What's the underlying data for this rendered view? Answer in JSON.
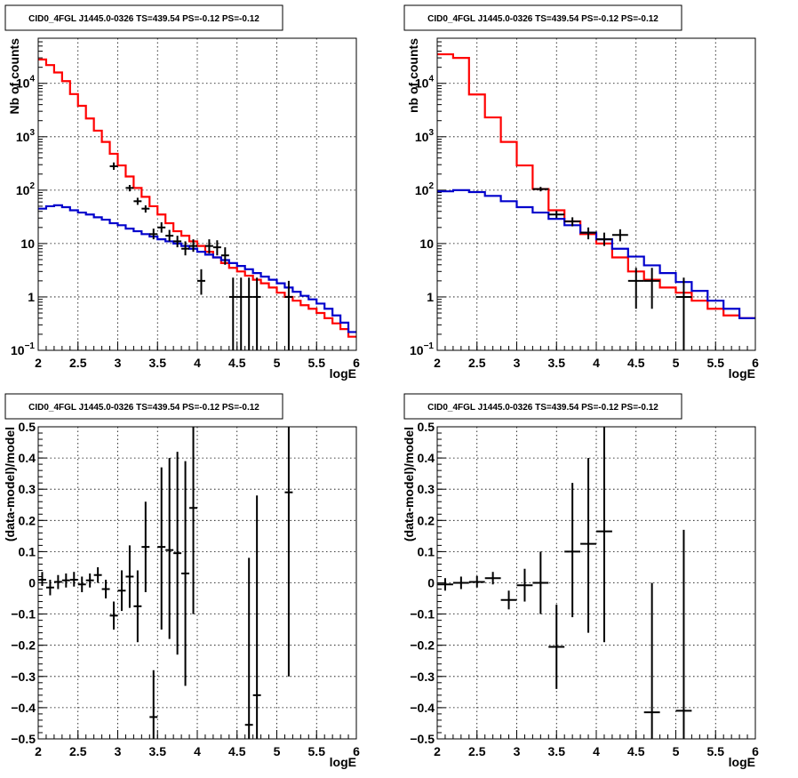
{
  "chart_data": [
    {
      "type": "line",
      "title": "CID0_4FGL J1445.0-0326 TS=439.54 PS=-0.12 PS=-0.12",
      "xlabel": "logE",
      "ylabel": "Nb of counts",
      "xlim": [
        2,
        6
      ],
      "ylim": [
        0.1,
        70000
      ],
      "yscale": "log",
      "grid": true,
      "x_ticks": [
        "2",
        "2.5",
        "3",
        "3.5",
        "4",
        "4.5",
        "5",
        "5.5",
        "6"
      ],
      "y_ticks": [
        {
          "value": 0.1,
          "base": "10",
          "exp": "−1"
        },
        {
          "value": 1,
          "label": "1"
        },
        {
          "value": 10,
          "label": "10"
        },
        {
          "value": 100,
          "base": "10",
          "exp": "2"
        },
        {
          "value": 1000,
          "base": "10",
          "exp": "3"
        },
        {
          "value": 10000,
          "base": "10",
          "exp": "4"
        }
      ],
      "series": [
        {
          "color": "#ff0000",
          "bins": 40,
          "x0": 2,
          "dx": 0.1,
          "values": [
            28000,
            22000,
            16000,
            11000,
            6300,
            3800,
            2200,
            1300,
            800,
            480,
            290,
            180,
            110,
            75,
            50,
            35,
            24,
            17,
            14,
            11,
            9,
            7,
            5.5,
            4.3,
            3.5,
            3,
            2.5,
            2.1,
            1.8,
            1.5,
            1.2,
            1,
            0.85,
            0.7,
            0.6,
            0.5,
            0.4,
            0.32,
            0.25,
            0.18
          ]
        },
        {
          "color": "#0000cc",
          "bins": 40,
          "x0": 2,
          "dx": 0.1,
          "values": [
            45,
            50,
            52,
            48,
            42,
            38,
            35,
            31,
            28,
            24,
            22,
            19,
            17,
            15,
            13.5,
            12,
            11,
            10,
            9,
            8,
            7,
            6.2,
            5.5,
            4.9,
            4.3,
            3.8,
            3.3,
            2.8,
            2.4,
            2.1,
            1.8,
            1.5,
            1.25,
            1.05,
            0.9,
            0.75,
            0.6,
            0.45,
            0.33,
            0.22
          ]
        }
      ],
      "points": [
        {
          "x": 2.95,
          "y": 280,
          "lo": 240,
          "hi": 330
        },
        {
          "x": 3.15,
          "y": 110,
          "lo": 95,
          "hi": 125
        },
        {
          "x": 3.25,
          "y": 62,
          "lo": 53,
          "hi": 72
        },
        {
          "x": 3.35,
          "y": 45,
          "lo": 38,
          "hi": 52
        },
        {
          "x": 3.45,
          "y": 15,
          "lo": 12,
          "hi": 19
        },
        {
          "x": 3.55,
          "y": 20,
          "lo": 16,
          "hi": 25
        },
        {
          "x": 3.65,
          "y": 14,
          "lo": 11,
          "hi": 18
        },
        {
          "x": 3.75,
          "y": 11,
          "lo": 8.5,
          "hi": 14
        },
        {
          "x": 3.85,
          "y": 8,
          "lo": 6,
          "hi": 11
        },
        {
          "x": 3.95,
          "y": 9,
          "lo": 7,
          "hi": 12
        },
        {
          "x": 4.05,
          "y": 2,
          "lo": 1.1,
          "hi": 3.3
        },
        {
          "x": 4.15,
          "y": 9,
          "lo": 6.5,
          "hi": 12
        },
        {
          "x": 4.25,
          "y": 8.5,
          "lo": 6,
          "hi": 11.5
        },
        {
          "x": 4.35,
          "y": 6,
          "lo": 4,
          "hi": 8.5
        },
        {
          "x": 4.45,
          "y": 1,
          "lo": 0.1,
          "hi": 2.3
        },
        {
          "x": 4.55,
          "y": 1,
          "lo": 0.1,
          "hi": 2.3
        },
        {
          "x": 4.65,
          "y": 1,
          "lo": 0.1,
          "hi": 2.3
        },
        {
          "x": 4.75,
          "y": 1,
          "lo": 0.1,
          "hi": 2.3
        },
        {
          "x": 5.15,
          "y": 1,
          "lo": 0.1,
          "hi": 2
        }
      ]
    },
    {
      "type": "line",
      "title": "CID0_4FGL J1445.0-0326 TS=439.54 PS=-0.12 PS=-0.12",
      "xlabel": "logE",
      "ylabel": "nb of counts",
      "xlim": [
        2,
        6
      ],
      "ylim": [
        0.1,
        70000
      ],
      "yscale": "log",
      "grid": true,
      "x_ticks": [
        "2",
        "2.5",
        "3",
        "3.5",
        "4",
        "4.5",
        "5",
        "5.5",
        "6"
      ],
      "y_ticks": [
        {
          "value": 0.1,
          "base": "10",
          "exp": "−1"
        },
        {
          "value": 1,
          "label": "1"
        },
        {
          "value": 10,
          "label": "10"
        },
        {
          "value": 100,
          "base": "10",
          "exp": "2"
        },
        {
          "value": 1000,
          "base": "10",
          "exp": "3"
        },
        {
          "value": 10000,
          "base": "10",
          "exp": "4"
        }
      ],
      "series": [
        {
          "color": "#ff0000",
          "bins": 20,
          "x0": 2,
          "dx": 0.2,
          "values": [
            35000,
            30000,
            6200,
            2300,
            800,
            290,
            105,
            42,
            26,
            15,
            10,
            5.5,
            3,
            2.1,
            1.5,
            1.2,
            0.85,
            0.6,
            0.45,
            0.4
          ]
        },
        {
          "color": "#0000cc",
          "bins": 20,
          "x0": 2,
          "dx": 0.2,
          "values": [
            95,
            100,
            92,
            78,
            62,
            48,
            38,
            29,
            22,
            16,
            12,
            8,
            5.7,
            3.9,
            2.8,
            1.9,
            1.3,
            0.85,
            0.6,
            0.4
          ]
        }
      ],
      "points": [
        {
          "x": 3.3,
          "y": 105,
          "lo": 95,
          "hi": 115
        },
        {
          "x": 3.5,
          "y": 35,
          "lo": 30,
          "hi": 41
        },
        {
          "x": 3.7,
          "y": 26,
          "lo": 21,
          "hi": 31
        },
        {
          "x": 3.9,
          "y": 16,
          "lo": 12,
          "hi": 20
        },
        {
          "x": 4.1,
          "y": 12,
          "lo": 9,
          "hi": 16
        },
        {
          "x": 4.3,
          "y": 14.5,
          "lo": 11,
          "hi": 18.5
        },
        {
          "x": 4.5,
          "y": 2,
          "lo": 0.6,
          "hi": 3.5
        },
        {
          "x": 4.7,
          "y": 2,
          "lo": 0.6,
          "hi": 3.5
        },
        {
          "x": 5.1,
          "y": 1,
          "lo": 0.1,
          "hi": 2.3
        }
      ]
    },
    {
      "type": "scatter",
      "title": "CID0_4FGL J1445.0-0326 TS=439.54 PS=-0.12 PS=-0.12",
      "xlabel": "logE",
      "ylabel": "(data-model)/model",
      "xlim": [
        2,
        6
      ],
      "ylim": [
        -0.5,
        0.5
      ],
      "yscale": "linear",
      "grid": true,
      "x_ticks": [
        "2",
        "2.5",
        "3",
        "3.5",
        "4",
        "4.5",
        "5",
        "5.5",
        "6"
      ],
      "y_ticks_linear": [
        "−0.5",
        "−0.4",
        "−0.3",
        "−0.2",
        "−0.1",
        "0",
        "0.1",
        "0.2",
        "0.3",
        "0.4",
        "0.5"
      ],
      "points": [
        {
          "x": 2.05,
          "y": 0.01,
          "lo": -0.01,
          "hi": 0.035
        },
        {
          "x": 2.15,
          "y": -0.015,
          "lo": -0.04,
          "hi": 0.01
        },
        {
          "x": 2.25,
          "y": 0.003,
          "lo": -0.02,
          "hi": 0.025
        },
        {
          "x": 2.35,
          "y": 0.008,
          "lo": -0.015,
          "hi": 0.03
        },
        {
          "x": 2.45,
          "y": 0.01,
          "lo": -0.012,
          "hi": 0.035
        },
        {
          "x": 2.55,
          "y": -0.005,
          "lo": -0.03,
          "hi": 0.02
        },
        {
          "x": 2.65,
          "y": 0.008,
          "lo": -0.015,
          "hi": 0.03
        },
        {
          "x": 2.75,
          "y": 0.025,
          "lo": 0,
          "hi": 0.05
        },
        {
          "x": 2.85,
          "y": -0.02,
          "lo": -0.05,
          "hi": 0.01
        },
        {
          "x": 2.95,
          "y": -0.105,
          "lo": -0.15,
          "hi": -0.06
        },
        {
          "x": 3.05,
          "y": -0.025,
          "lo": -0.09,
          "hi": 0.04
        },
        {
          "x": 3.15,
          "y": 0.02,
          "lo": -0.08,
          "hi": 0.12
        },
        {
          "x": 3.25,
          "y": -0.075,
          "lo": -0.19,
          "hi": 0.04
        },
        {
          "x": 3.35,
          "y": 0.115,
          "lo": -0.03,
          "hi": 0.26
        },
        {
          "x": 3.45,
          "y": -0.43,
          "lo": -0.58,
          "hi": -0.28
        },
        {
          "x": 3.55,
          "y": 0.115,
          "lo": -0.15,
          "hi": 0.37
        },
        {
          "x": 3.65,
          "y": 0.105,
          "lo": -0.18,
          "hi": 0.4
        },
        {
          "x": 3.75,
          "y": 0.095,
          "lo": -0.23,
          "hi": 0.42
        },
        {
          "x": 3.85,
          "y": 0.03,
          "lo": -0.33,
          "hi": 0.39
        },
        {
          "x": 3.95,
          "y": 0.24,
          "lo": -0.1,
          "hi": 0.58
        },
        {
          "x": 4.65,
          "y": -0.455,
          "lo": -0.6,
          "hi": 0.08
        },
        {
          "x": 4.75,
          "y": -0.36,
          "lo": -0.6,
          "hi": 0.28
        },
        {
          "x": 5.15,
          "y": 0.29,
          "lo": -0.3,
          "hi": 0.6
        }
      ]
    },
    {
      "type": "scatter",
      "title": "CID0_4FGL J1445.0-0326 TS=439.54 PS=-0.12 PS=-0.12",
      "xlabel": "logE",
      "ylabel": "(data-model)/model",
      "xlim": [
        2,
        6
      ],
      "ylim": [
        -0.5,
        0.5
      ],
      "yscale": "linear",
      "grid": true,
      "x_ticks": [
        "2",
        "2.5",
        "3",
        "3.5",
        "4",
        "4.5",
        "5",
        "5.5",
        "6"
      ],
      "y_ticks_linear": [
        "−0.5",
        "−0.4",
        "−0.3",
        "−0.2",
        "−0.1",
        "0",
        "0.1",
        "0.2",
        "0.3",
        "0.4",
        "0.5"
      ],
      "points": [
        {
          "x": 2.1,
          "y": -0.005,
          "lo": -0.025,
          "hi": 0.015
        },
        {
          "x": 2.3,
          "y": 0.0,
          "lo": -0.02,
          "hi": 0.02
        },
        {
          "x": 2.5,
          "y": 0.003,
          "lo": -0.015,
          "hi": 0.022
        },
        {
          "x": 2.7,
          "y": 0.015,
          "lo": -0.005,
          "hi": 0.035
        },
        {
          "x": 2.9,
          "y": -0.055,
          "lo": -0.085,
          "hi": -0.025
        },
        {
          "x": 3.1,
          "y": -0.008,
          "lo": -0.06,
          "hi": 0.045
        },
        {
          "x": 3.3,
          "y": 0.0,
          "lo": -0.1,
          "hi": 0.1
        },
        {
          "x": 3.5,
          "y": -0.205,
          "lo": -0.34,
          "hi": -0.07
        },
        {
          "x": 3.7,
          "y": 0.1,
          "lo": -0.11,
          "hi": 0.32
        },
        {
          "x": 3.9,
          "y": 0.125,
          "lo": -0.16,
          "hi": 0.4
        },
        {
          "x": 4.1,
          "y": 0.165,
          "lo": -0.19,
          "hi": 0.52
        },
        {
          "x": 4.7,
          "y": -0.415,
          "lo": -0.6,
          "hi": 0.0
        },
        {
          "x": 5.1,
          "y": -0.41,
          "lo": -0.6,
          "hi": 0.17
        }
      ]
    }
  ]
}
